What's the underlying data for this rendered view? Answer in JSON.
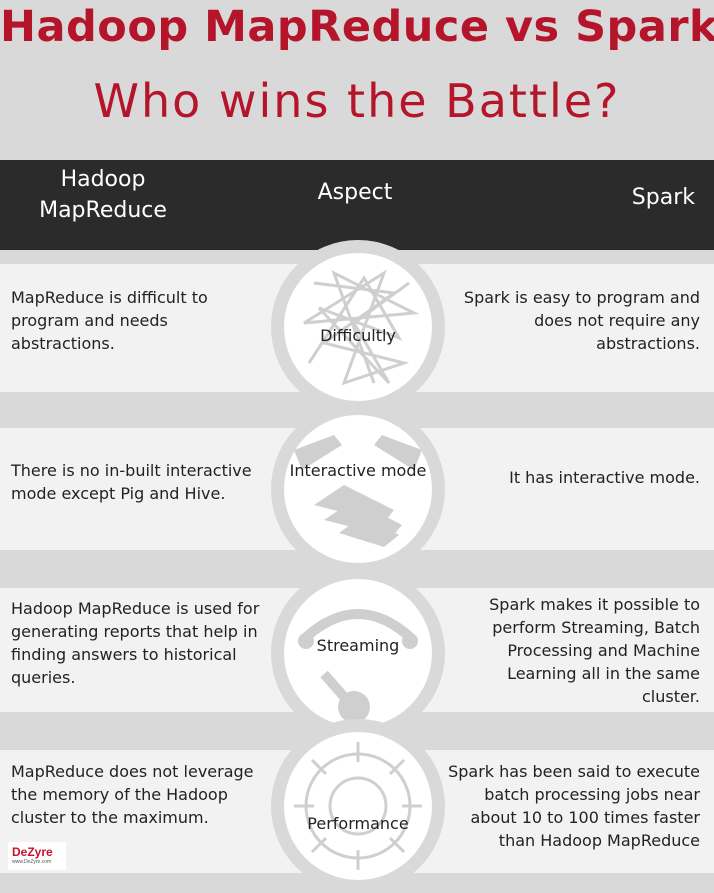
{
  "title": {
    "line1": "Hadoop MapReduce vs Spark",
    "line2": "Who wins the Battle?"
  },
  "header": {
    "left": "Hadoop MapReduce",
    "middle": "Aspect",
    "right": "Spark"
  },
  "rows": [
    {
      "aspect": "Difficultly",
      "icon": "tangled-lines-icon",
      "hadoop": "MapReduce is difficult to program and needs abstractions.",
      "spark": "Spark is easy to program and does not require any abstractions."
    },
    {
      "aspect": "Interactive mode",
      "icon": "handshake-icon",
      "hadoop": "There is no in-built interactive mode except Pig and Hive.",
      "spark": "It has interactive mode."
    },
    {
      "aspect": "Streaming",
      "icon": "streaming-arc-icon",
      "hadoop": "Hadoop MapReduce is used for generating reports that help in finding answers to historical queries.",
      "spark": "Spark makes it possible to perform Streaming, Batch Processing and Machine Learning all in the same cluster."
    },
    {
      "aspect": "Performance",
      "icon": "gear-icon",
      "hadoop": "MapReduce does not leverage the memory of the Hadoop cluster to the maximum.",
      "spark": "Spark has been said to execute batch processing jobs near about 10 to 100 times faster than Hadoop MapReduce"
    }
  ],
  "logo": {
    "brand": "DeZyre",
    "url": "www.DeZyre.com"
  },
  "colors": {
    "title": "#b5152b",
    "header_bg": "#2b2b2b",
    "row_bg": "#f2f2f2",
    "page_bg": "#d9d9d9"
  }
}
